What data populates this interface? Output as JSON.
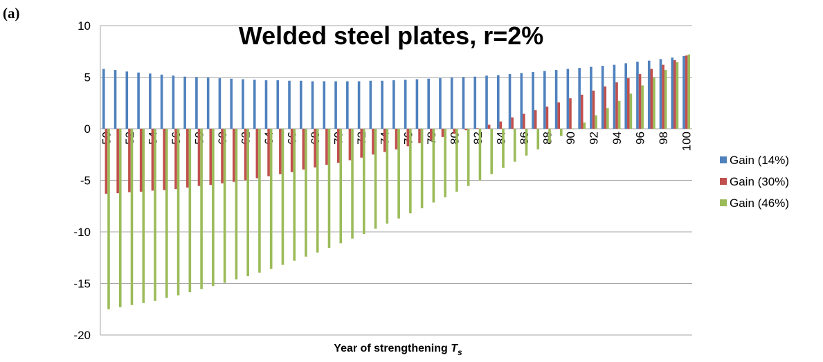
{
  "panel_label": "(a)",
  "chart_data": {
    "type": "bar",
    "title": "Welded steel plates, r=2%",
    "x_label": "Year of strengthening",
    "x_label_symbol": "T",
    "x_label_subscript": "s",
    "categories": [
      "50",
      null,
      "52",
      null,
      "54",
      null,
      "56",
      null,
      "58",
      null,
      "60",
      null,
      "62",
      null,
      "64",
      null,
      "66",
      null,
      "68",
      null,
      "70",
      null,
      "72",
      null,
      "74",
      null,
      "76",
      null,
      "78",
      null,
      "80",
      null,
      "82",
      null,
      "84",
      null,
      "86",
      null,
      "88",
      null,
      "90",
      null,
      "92",
      null,
      "94",
      null,
      "96",
      null,
      "98",
      null,
      "100"
    ],
    "series": [
      {
        "name": "Gain (14%)",
        "color": "#4f81bd",
        "values": [
          5.8,
          5.7,
          5.55,
          5.45,
          5.35,
          5.25,
          5.15,
          5.05,
          5.0,
          4.95,
          4.9,
          4.85,
          4.8,
          4.75,
          4.7,
          4.7,
          4.65,
          4.65,
          4.6,
          4.6,
          4.6,
          4.6,
          4.6,
          4.65,
          4.65,
          4.7,
          4.75,
          4.8,
          4.85,
          4.9,
          4.95,
          5.0,
          5.05,
          5.15,
          5.2,
          5.3,
          5.4,
          5.5,
          5.6,
          5.7,
          5.8,
          5.9,
          6.0,
          6.1,
          6.2,
          6.35,
          6.5,
          6.6,
          6.75,
          6.9,
          7.05
        ]
      },
      {
        "name": "Gain (30%)",
        "color": "#c0504d",
        "values": [
          -6.3,
          -6.25,
          -6.15,
          -6.1,
          -6.0,
          -5.95,
          -5.85,
          -5.7,
          -5.55,
          -5.45,
          -5.3,
          -5.15,
          -5.0,
          -4.8,
          -4.6,
          -4.4,
          -4.2,
          -3.95,
          -3.75,
          -3.5,
          -3.3,
          -3.05,
          -2.8,
          -2.5,
          -2.25,
          -2.0,
          -1.7,
          -1.4,
          -1.1,
          -0.8,
          -0.5,
          -0.15,
          0.05,
          0.4,
          0.7,
          1.1,
          1.45,
          1.8,
          2.15,
          2.55,
          2.95,
          3.3,
          3.7,
          4.1,
          4.5,
          4.9,
          5.3,
          5.8,
          6.2,
          6.65,
          7.1
        ]
      },
      {
        "name": "Gain (46%)",
        "color": "#9bbb59",
        "values": [
          -17.5,
          -17.3,
          -17.1,
          -16.9,
          -16.7,
          -16.4,
          -16.15,
          -15.85,
          -15.55,
          -15.25,
          -14.95,
          -14.6,
          -14.3,
          -13.95,
          -13.6,
          -13.2,
          -12.8,
          -12.4,
          -12.0,
          -11.55,
          -11.1,
          -10.65,
          -10.2,
          -9.7,
          -9.2,
          -8.7,
          -8.2,
          -7.7,
          -7.15,
          -6.65,
          -6.1,
          -5.55,
          -5.0,
          -4.4,
          -3.8,
          -3.2,
          -2.6,
          -2.0,
          -1.35,
          -0.7,
          -0.05,
          0.6,
          1.3,
          2.0,
          2.7,
          3.4,
          4.2,
          4.95,
          5.7,
          6.45,
          7.2
        ]
      }
    ],
    "ylim": [
      -20,
      10
    ],
    "yticks": [
      -20,
      -15,
      -10,
      -5,
      0,
      5,
      10
    ],
    "grid": true,
    "legend": "right"
  }
}
